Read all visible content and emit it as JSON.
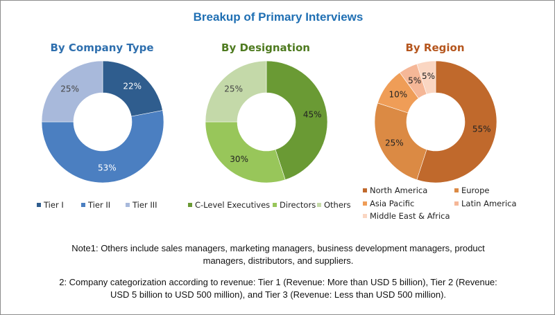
{
  "title": "Breakup of Primary Interviews",
  "chart_data": [
    {
      "type": "pie",
      "title": "By Company Type",
      "categories": [
        "Tier I",
        "Tier II",
        "Tier III"
      ],
      "values": [
        22,
        53,
        25
      ],
      "labels": [
        "22%",
        "53%",
        "25%"
      ],
      "colors": [
        "#2f5d8e",
        "#4b7fc1",
        "#a8b9db"
      ],
      "label_colors": [
        "#ffffff",
        "#ffffff",
        "#444444"
      ],
      "legend": "bottom"
    },
    {
      "type": "pie",
      "title": "By Designation",
      "categories": [
        "C-Level Executives",
        "Directors",
        "Others"
      ],
      "values": [
        45,
        30,
        25
      ],
      "labels": [
        "45%",
        "30%",
        "25%"
      ],
      "colors": [
        "#6a9a34",
        "#98c65a",
        "#c4d9a9"
      ],
      "label_colors": [
        "#222222",
        "#222222",
        "#444444"
      ],
      "legend": "bottom"
    },
    {
      "type": "pie",
      "title": "By Region",
      "categories": [
        "North America",
        "Europe",
        "Asia Pacific",
        "Latin America",
        "Middle East & Africa"
      ],
      "values": [
        55,
        25,
        10,
        5,
        5
      ],
      "labels": [
        "55%",
        "25%",
        "10%",
        "5%",
        "5%"
      ],
      "colors": [
        "#c0692c",
        "#db8a44",
        "#ef9d57",
        "#f5b797",
        "#fad6c2"
      ],
      "label_colors": [
        "#222222",
        "#222222",
        "#222222",
        "#222222",
        "#222222"
      ],
      "legend": "bottom"
    }
  ],
  "notes": {
    "note1_line1": "Note1: Others include sales managers, marketing managers, business development managers, product",
    "note1_line2": "managers, distributors, and suppliers.",
    "note2_line1": "2: Company categorization according to revenue: Tier 1 (Revenue: More than USD 5 billion), Tier 2 (Revenue:",
    "note2_line2": "USD 5 billion to USD 500 million), and Tier 3 (Revenue: Less than USD 500 million)."
  }
}
